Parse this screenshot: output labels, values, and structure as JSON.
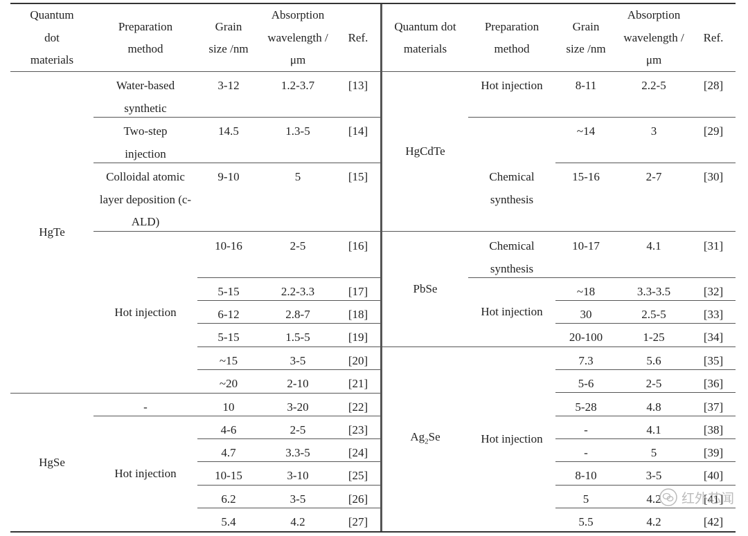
{
  "left_header": {
    "material": "Quantum dot materials",
    "method": "Preparation method",
    "grain": "Grain size /nm",
    "absorption": "Absorption wavelength /μm",
    "ref": "Ref."
  },
  "right_header": {
    "material": "Quantum dot materials",
    "method": "Preparation method",
    "grain": "Grain size /nm",
    "absorption": "Absorption wavelength /μm",
    "ref": "Ref."
  },
  "left_groups": {
    "hgte": "HgTe",
    "hgse": "HgSe"
  },
  "left_methods": {
    "water": "Water-based synthetic",
    "twostep": "Two-step injection",
    "cald": "Colloidal atomic layer deposition (c-ALD)",
    "hot_hgte": "Hot injection",
    "dash_hgse": "-",
    "hot_hgse": "Hot injection"
  },
  "left_rows": [
    {
      "grain": "3-12",
      "absorption": "1.2-3.7",
      "ref": "[13]"
    },
    {
      "grain": "14.5",
      "absorption": "1.3-5",
      "ref": "[14]"
    },
    {
      "grain": "9-10",
      "absorption": "5",
      "ref": "[15]"
    },
    {
      "grain": "10-16",
      "absorption": "2-5",
      "ref": "[16]"
    },
    {
      "grain": "5-15",
      "absorption": "2.2-3.3",
      "ref": "[17]"
    },
    {
      "grain": "6-12",
      "absorption": "2.8-7",
      "ref": "[18]"
    },
    {
      "grain": "5-15",
      "absorption": "1.5-5",
      "ref": "[19]"
    },
    {
      "grain": "~15",
      "absorption": "3-5",
      "ref": "[20]"
    },
    {
      "grain": "~20",
      "absorption": "2-10",
      "ref": "[21]"
    },
    {
      "grain": "10",
      "absorption": "3-20",
      "ref": "[22]"
    },
    {
      "grain": "4-6",
      "absorption": "2-5",
      "ref": "[23]"
    },
    {
      "grain": "4.7",
      "absorption": "3.3-5",
      "ref": "[24]"
    },
    {
      "grain": "10-15",
      "absorption": "3-10",
      "ref": "[25]"
    },
    {
      "grain": "6.2",
      "absorption": "3-5",
      "ref": "[26]"
    },
    {
      "grain": "5.4",
      "absorption": "4.2",
      "ref": "[27]"
    }
  ],
  "right_groups": {
    "hgcdte": "HgCdTe",
    "pbse": "PbSe",
    "ag2se_main": "Ag",
    "ag2se_sub": "2",
    "ag2se_tail": "Se"
  },
  "right_methods": {
    "hot_hgcdte": "Hot injection",
    "chem_hgcdte": "Chemical synthesis",
    "chem_pbse": "Chemical synthesis",
    "hot_pbse": "Hot injection",
    "hot_ag2se": "Hot injection"
  },
  "right_rows": [
    {
      "grain": "8-11",
      "absorption": "2.2-5",
      "ref": "[28]"
    },
    {
      "grain": "~14",
      "absorption": "3",
      "ref": "[29]"
    },
    {
      "grain": "15-16",
      "absorption": "2-7",
      "ref": "[30]"
    },
    {
      "grain": "10-17",
      "absorption": "4.1",
      "ref": "[31]"
    },
    {
      "grain": "~18",
      "absorption": "3.3-3.5",
      "ref": "[32]"
    },
    {
      "grain": "30",
      "absorption": "2.5-5",
      "ref": "[33]"
    },
    {
      "grain": "20-100",
      "absorption": "1-25",
      "ref": "[34]"
    },
    {
      "grain": "7.3",
      "absorption": "5.6",
      "ref": "[35]"
    },
    {
      "grain": "5-6",
      "absorption": "2-5",
      "ref": "[36]"
    },
    {
      "grain": "5-28",
      "absorption": "4.8",
      "ref": "[37]"
    },
    {
      "grain": "-",
      "absorption": "4.1",
      "ref": "[38]"
    },
    {
      "grain": "-",
      "absorption": "5",
      "ref": "[39]"
    },
    {
      "grain": "8-10",
      "absorption": "3-5",
      "ref": "[40]"
    },
    {
      "grain": "5",
      "absorption": "4.2",
      "ref": "[41]"
    },
    {
      "grain": "5.5",
      "absorption": "4.2",
      "ref": "[42]"
    }
  ],
  "watermark": {
    "icon": "wechat-icon",
    "text": "红外芯闻"
  }
}
